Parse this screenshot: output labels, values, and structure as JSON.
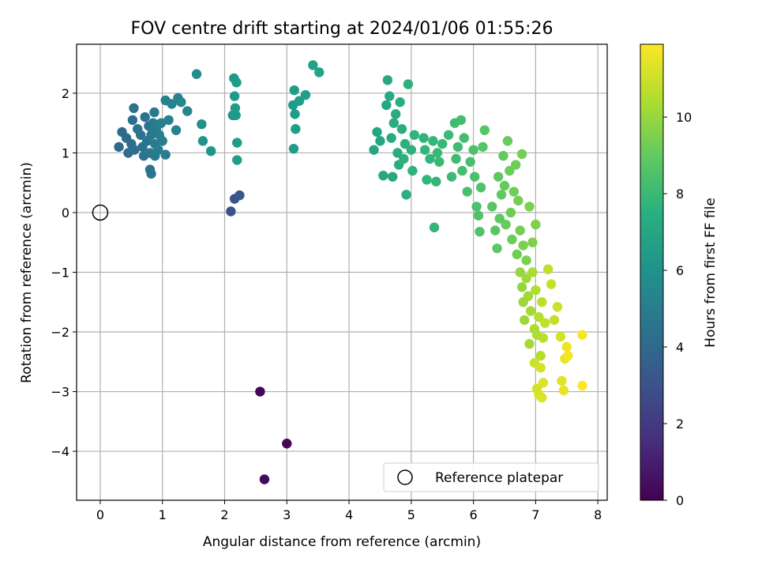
{
  "chart_data": {
    "type": "scatter",
    "title": "FOV centre drift starting at 2024/01/06 01:55:26",
    "xlabel": "Angular distance from reference (arcmin)",
    "ylabel": "Rotation from reference (arcmin)",
    "xlim": [
      -0.38,
      8.15
    ],
    "ylim": [
      -4.82,
      2.82
    ],
    "x_ticks": [
      0,
      1,
      2,
      3,
      4,
      5,
      6,
      7,
      8
    ],
    "y_ticks": [
      -4,
      -3,
      -2,
      -1,
      0,
      1,
      2
    ],
    "grid": true,
    "legend": {
      "position": "bottom-right",
      "entries": [
        "Reference platepar"
      ]
    },
    "reference_point": {
      "name": "Reference platepar",
      "x": 0,
      "y": 0
    },
    "colorbar": {
      "label": "Hours from first FF file",
      "range": [
        0,
        11.9
      ],
      "ticks": [
        0,
        2,
        4,
        6,
        8,
        10
      ],
      "colormap": "viridis"
    },
    "series": [
      {
        "color_variable": "Hours from first FF file",
        "points": [
          {
            "x": 2.57,
            "y": -3.0,
            "c": 0.1
          },
          {
            "x": 3.0,
            "y": -3.87,
            "c": 0.2
          },
          {
            "x": 2.64,
            "y": -4.47,
            "c": 0.3
          },
          {
            "x": 2.1,
            "y": 0.02,
            "c": 3.0
          },
          {
            "x": 2.16,
            "y": 0.23,
            "c": 3.1
          },
          {
            "x": 2.24,
            "y": 0.29,
            "c": 3.2
          },
          {
            "x": 0.3,
            "y": 1.1,
            "c": 4.0
          },
          {
            "x": 0.35,
            "y": 1.35,
            "c": 4.1
          },
          {
            "x": 0.42,
            "y": 1.25,
            "c": 4.1
          },
          {
            "x": 0.45,
            "y": 1.0,
            "c": 4.2
          },
          {
            "x": 0.5,
            "y": 1.15,
            "c": 4.2
          },
          {
            "x": 0.55,
            "y": 1.05,
            "c": 4.3
          },
          {
            "x": 0.52,
            "y": 1.55,
            "c": 4.3
          },
          {
            "x": 0.54,
            "y": 1.75,
            "c": 4.4
          },
          {
            "x": 0.6,
            "y": 1.4,
            "c": 4.4
          },
          {
            "x": 0.65,
            "y": 1.3,
            "c": 4.5
          },
          {
            "x": 0.68,
            "y": 1.1,
            "c": 4.5
          },
          {
            "x": 0.7,
            "y": 0.95,
            "c": 4.6
          },
          {
            "x": 0.72,
            "y": 1.6,
            "c": 4.6
          },
          {
            "x": 0.75,
            "y": 1.2,
            "c": 4.7
          },
          {
            "x": 0.78,
            "y": 1.45,
            "c": 4.7
          },
          {
            "x": 0.8,
            "y": 1.0,
            "c": 4.8
          },
          {
            "x": 0.82,
            "y": 1.3,
            "c": 4.8
          },
          {
            "x": 0.85,
            "y": 1.5,
            "c": 4.9
          },
          {
            "x": 0.87,
            "y": 1.68,
            "c": 4.9
          },
          {
            "x": 0.88,
            "y": 1.15,
            "c": 5.0
          },
          {
            "x": 0.9,
            "y": 1.4,
            "c": 5.0
          },
          {
            "x": 0.93,
            "y": 1.05,
            "c": 5.1
          },
          {
            "x": 0.95,
            "y": 1.3,
            "c": 5.1
          },
          {
            "x": 0.98,
            "y": 1.5,
            "c": 5.2
          },
          {
            "x": 0.8,
            "y": 0.72,
            "c": 4.6
          },
          {
            "x": 0.82,
            "y": 0.65,
            "c": 4.6
          },
          {
            "x": 0.88,
            "y": 0.95,
            "c": 4.9
          },
          {
            "x": 1.05,
            "y": 0.97,
            "c": 5.0
          },
          {
            "x": 1.0,
            "y": 1.2,
            "c": 5.1
          },
          {
            "x": 1.05,
            "y": 1.88,
            "c": 5.2
          },
          {
            "x": 1.1,
            "y": 1.55,
            "c": 5.3
          },
          {
            "x": 1.15,
            "y": 1.82,
            "c": 5.3
          },
          {
            "x": 1.22,
            "y": 1.38,
            "c": 5.4
          },
          {
            "x": 1.25,
            "y": 1.92,
            "c": 5.4
          },
          {
            "x": 1.3,
            "y": 1.85,
            "c": 5.5
          },
          {
            "x": 1.4,
            "y": 1.7,
            "c": 5.5
          },
          {
            "x": 1.55,
            "y": 2.32,
            "c": 5.8
          },
          {
            "x": 1.63,
            "y": 1.48,
            "c": 6.0
          },
          {
            "x": 1.65,
            "y": 1.2,
            "c": 6.1
          },
          {
            "x": 1.78,
            "y": 1.03,
            "c": 6.2
          },
          {
            "x": 2.13,
            "y": 1.63,
            "c": 6.3
          },
          {
            "x": 2.15,
            "y": 2.25,
            "c": 6.3
          },
          {
            "x": 2.16,
            "y": 1.95,
            "c": 6.4
          },
          {
            "x": 2.17,
            "y": 1.75,
            "c": 6.4
          },
          {
            "x": 2.18,
            "y": 1.63,
            "c": 6.4
          },
          {
            "x": 2.19,
            "y": 2.18,
            "c": 6.5
          },
          {
            "x": 2.2,
            "y": 1.17,
            "c": 6.5
          },
          {
            "x": 2.2,
            "y": 0.88,
            "c": 6.5
          },
          {
            "x": 3.1,
            "y": 1.8,
            "c": 6.5
          },
          {
            "x": 3.12,
            "y": 2.05,
            "c": 6.5
          },
          {
            "x": 3.13,
            "y": 1.65,
            "c": 6.6
          },
          {
            "x": 3.14,
            "y": 1.4,
            "c": 6.6
          },
          {
            "x": 3.11,
            "y": 1.07,
            "c": 6.6
          },
          {
            "x": 3.2,
            "y": 1.87,
            "c": 6.7
          },
          {
            "x": 3.3,
            "y": 1.97,
            "c": 6.7
          },
          {
            "x": 3.42,
            "y": 2.47,
            "c": 6.8
          },
          {
            "x": 3.52,
            "y": 2.35,
            "c": 6.8
          },
          {
            "x": 4.4,
            "y": 1.05,
            "c": 7.0
          },
          {
            "x": 4.45,
            "y": 1.35,
            "c": 7.0
          },
          {
            "x": 4.5,
            "y": 1.2,
            "c": 7.0
          },
          {
            "x": 4.55,
            "y": 0.62,
            "c": 7.1
          },
          {
            "x": 4.6,
            "y": 1.8,
            "c": 7.1
          },
          {
            "x": 4.62,
            "y": 2.22,
            "c": 7.1
          },
          {
            "x": 4.65,
            "y": 1.95,
            "c": 7.2
          },
          {
            "x": 4.68,
            "y": 1.25,
            "c": 7.2
          },
          {
            "x": 4.7,
            "y": 0.6,
            "c": 7.2
          },
          {
            "x": 4.72,
            "y": 1.5,
            "c": 7.3
          },
          {
            "x": 4.75,
            "y": 1.65,
            "c": 7.3
          },
          {
            "x": 4.78,
            "y": 1.0,
            "c": 7.3
          },
          {
            "x": 4.8,
            "y": 0.8,
            "c": 7.4
          },
          {
            "x": 4.82,
            "y": 1.85,
            "c": 7.4
          },
          {
            "x": 4.85,
            "y": 1.4,
            "c": 7.4
          },
          {
            "x": 4.88,
            "y": 0.9,
            "c": 7.5
          },
          {
            "x": 4.9,
            "y": 1.15,
            "c": 7.5
          },
          {
            "x": 4.92,
            "y": 0.3,
            "c": 7.5
          },
          {
            "x": 4.95,
            "y": 2.15,
            "c": 7.6
          },
          {
            "x": 5.0,
            "y": 1.05,
            "c": 7.6
          },
          {
            "x": 5.02,
            "y": 0.7,
            "c": 7.6
          },
          {
            "x": 5.05,
            "y": 1.3,
            "c": 7.7
          },
          {
            "x": 5.2,
            "y": 1.25,
            "c": 7.7
          },
          {
            "x": 5.22,
            "y": 1.05,
            "c": 7.8
          },
          {
            "x": 5.25,
            "y": 0.55,
            "c": 7.8
          },
          {
            "x": 5.3,
            "y": 0.9,
            "c": 7.8
          },
          {
            "x": 5.35,
            "y": 1.2,
            "c": 7.9
          },
          {
            "x": 5.37,
            "y": -0.25,
            "c": 7.9
          },
          {
            "x": 5.4,
            "y": 0.52,
            "c": 7.9
          },
          {
            "x": 5.42,
            "y": 1.0,
            "c": 8.0
          },
          {
            "x": 5.45,
            "y": 0.85,
            "c": 8.0
          },
          {
            "x": 5.5,
            "y": 1.15,
            "c": 8.0
          },
          {
            "x": 5.6,
            "y": 1.3,
            "c": 8.1
          },
          {
            "x": 5.65,
            "y": 0.6,
            "c": 8.1
          },
          {
            "x": 5.7,
            "y": 1.5,
            "c": 8.2
          },
          {
            "x": 5.72,
            "y": 0.9,
            "c": 8.2
          },
          {
            "x": 5.75,
            "y": 1.1,
            "c": 8.2
          },
          {
            "x": 5.8,
            "y": 1.55,
            "c": 8.3
          },
          {
            "x": 5.82,
            "y": 0.7,
            "c": 8.3
          },
          {
            "x": 5.85,
            "y": 1.25,
            "c": 8.3
          },
          {
            "x": 5.9,
            "y": 0.35,
            "c": 8.4
          },
          {
            "x": 5.95,
            "y": 0.85,
            "c": 8.4
          },
          {
            "x": 6.0,
            "y": 1.05,
            "c": 8.5
          },
          {
            "x": 6.02,
            "y": 0.6,
            "c": 8.5
          },
          {
            "x": 6.05,
            "y": 0.1,
            "c": 8.5
          },
          {
            "x": 6.08,
            "y": -0.05,
            "c": 8.6
          },
          {
            "x": 6.1,
            "y": -0.32,
            "c": 8.6
          },
          {
            "x": 6.12,
            "y": 0.42,
            "c": 8.6
          },
          {
            "x": 6.15,
            "y": 1.1,
            "c": 8.7
          },
          {
            "x": 6.18,
            "y": 1.38,
            "c": 8.7
          },
          {
            "x": 6.3,
            "y": 0.1,
            "c": 8.8
          },
          {
            "x": 6.35,
            "y": -0.3,
            "c": 8.8
          },
          {
            "x": 6.38,
            "y": -0.6,
            "c": 8.9
          },
          {
            "x": 6.4,
            "y": 0.6,
            "c": 8.9
          },
          {
            "x": 6.42,
            "y": -0.1,
            "c": 8.9
          },
          {
            "x": 6.45,
            "y": 0.3,
            "c": 9.0
          },
          {
            "x": 6.48,
            "y": 0.95,
            "c": 9.0
          },
          {
            "x": 6.5,
            "y": 0.45,
            "c": 9.1
          },
          {
            "x": 6.52,
            "y": -0.2,
            "c": 9.1
          },
          {
            "x": 6.55,
            "y": 1.2,
            "c": 9.1
          },
          {
            "x": 6.58,
            "y": 0.7,
            "c": 9.2
          },
          {
            "x": 6.6,
            "y": 0.0,
            "c": 9.2
          },
          {
            "x": 6.62,
            "y": -0.45,
            "c": 9.2
          },
          {
            "x": 6.65,
            "y": 0.35,
            "c": 9.3
          },
          {
            "x": 6.68,
            "y": 0.8,
            "c": 9.3
          },
          {
            "x": 6.7,
            "y": -0.7,
            "c": 9.3
          },
          {
            "x": 6.72,
            "y": 0.2,
            "c": 9.4
          },
          {
            "x": 6.75,
            "y": -0.3,
            "c": 9.4
          },
          {
            "x": 6.78,
            "y": 0.98,
            "c": 9.4
          },
          {
            "x": 6.8,
            "y": -0.55,
            "c": 9.5
          },
          {
            "x": 6.85,
            "y": -0.8,
            "c": 9.5
          },
          {
            "x": 6.9,
            "y": 0.1,
            "c": 9.5
          },
          {
            "x": 6.95,
            "y": -0.5,
            "c": 9.6
          },
          {
            "x": 7.0,
            "y": -0.2,
            "c": 9.6
          },
          {
            "x": 6.75,
            "y": -1.0,
            "c": 10.0
          },
          {
            "x": 6.78,
            "y": -1.25,
            "c": 10.0
          },
          {
            "x": 6.8,
            "y": -1.5,
            "c": 10.1
          },
          {
            "x": 6.82,
            "y": -1.8,
            "c": 10.1
          },
          {
            "x": 6.85,
            "y": -1.1,
            "c": 10.2
          },
          {
            "x": 6.88,
            "y": -1.4,
            "c": 10.2
          },
          {
            "x": 6.9,
            "y": -2.2,
            "c": 10.3
          },
          {
            "x": 6.92,
            "y": -1.65,
            "c": 10.3
          },
          {
            "x": 6.95,
            "y": -1.0,
            "c": 10.4
          },
          {
            "x": 6.98,
            "y": -1.95,
            "c": 10.4
          },
          {
            "x": 7.0,
            "y": -1.3,
            "c": 10.5
          },
          {
            "x": 7.02,
            "y": -2.05,
            "c": 10.5
          },
          {
            "x": 7.05,
            "y": -1.75,
            "c": 10.6
          },
          {
            "x": 7.08,
            "y": -2.4,
            "c": 10.6
          },
          {
            "x": 7.1,
            "y": -1.5,
            "c": 10.7
          },
          {
            "x": 7.12,
            "y": -2.1,
            "c": 10.7
          },
          {
            "x": 7.15,
            "y": -1.85,
            "c": 10.8
          },
          {
            "x": 7.2,
            "y": -0.95,
            "c": 10.8
          },
          {
            "x": 7.25,
            "y": -1.2,
            "c": 10.9
          },
          {
            "x": 7.3,
            "y": -1.8,
            "c": 10.9
          },
          {
            "x": 6.98,
            "y": -2.52,
            "c": 11.0
          },
          {
            "x": 7.02,
            "y": -2.95,
            "c": 11.1
          },
          {
            "x": 7.05,
            "y": -3.05,
            "c": 11.2
          },
          {
            "x": 7.08,
            "y": -2.6,
            "c": 11.2
          },
          {
            "x": 7.1,
            "y": -3.1,
            "c": 11.3
          },
          {
            "x": 7.12,
            "y": -2.85,
            "c": 11.3
          },
          {
            "x": 7.35,
            "y": -1.58,
            "c": 11.0
          },
          {
            "x": 7.4,
            "y": -2.08,
            "c": 11.2
          },
          {
            "x": 7.42,
            "y": -2.82,
            "c": 11.4
          },
          {
            "x": 7.45,
            "y": -2.98,
            "c": 11.5
          },
          {
            "x": 7.47,
            "y": -2.45,
            "c": 11.5
          },
          {
            "x": 7.5,
            "y": -2.25,
            "c": 11.6
          },
          {
            "x": 7.52,
            "y": -2.4,
            "c": 11.7
          },
          {
            "x": 7.75,
            "y": -2.05,
            "c": 11.8
          },
          {
            "x": 7.75,
            "y": -2.9,
            "c": 11.9
          }
        ]
      }
    ]
  }
}
